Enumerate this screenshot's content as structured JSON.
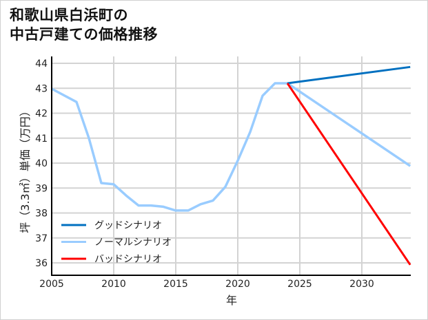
{
  "title_line1": "和歌山県白浜町の",
  "title_line2": "中古戸建ての価格推移",
  "chart_data": {
    "type": "line",
    "title": "和歌山県白浜町の中古戸建ての価格推移",
    "xlabel": "年",
    "ylabel": "坪（3.3㎡）単価（万円）",
    "xlim": [
      2005,
      2034
    ],
    "ylim": [
      35.5,
      44.2
    ],
    "x_ticks": [
      2005,
      2010,
      2015,
      2020,
      2025,
      2030
    ],
    "y_ticks": [
      36,
      37,
      38,
      39,
      40,
      41,
      42,
      43,
      44
    ],
    "grid": true,
    "legend_position": "lower left",
    "series": [
      {
        "name": "ノーマルシナリオ",
        "color": "#99ccff",
        "x": [
          2005,
          2007,
          2008,
          2009,
          2010,
          2011,
          2012,
          2013,
          2014,
          2015,
          2016,
          2017,
          2018,
          2019,
          2020,
          2021,
          2022,
          2023,
          2024,
          2034
        ],
        "values": [
          42.98,
          42.45,
          41.0,
          39.2,
          39.15,
          38.7,
          38.3,
          38.3,
          38.25,
          38.1,
          38.1,
          38.35,
          38.5,
          39.05,
          40.1,
          41.25,
          42.7,
          43.2,
          43.2,
          39.85
        ]
      },
      {
        "name": "グッドシナリオ",
        "color": "#0070c0",
        "x": [
          2024,
          2034
        ],
        "values": [
          43.2,
          43.86
        ]
      },
      {
        "name": "バッドシナリオ",
        "color": "#ff0000",
        "x": [
          2024,
          2034
        ],
        "values": [
          43.2,
          35.85
        ]
      }
    ]
  },
  "legend": [
    {
      "label": "グッドシナリオ",
      "color": "#0070c0"
    },
    {
      "label": "ノーマルシナリオ",
      "color": "#99ccff"
    },
    {
      "label": "バッドシナリオ",
      "color": "#ff0000"
    }
  ],
  "axis": {
    "xlabel": "年",
    "ylabel": "坪（3.3㎡）単価（万円）"
  }
}
